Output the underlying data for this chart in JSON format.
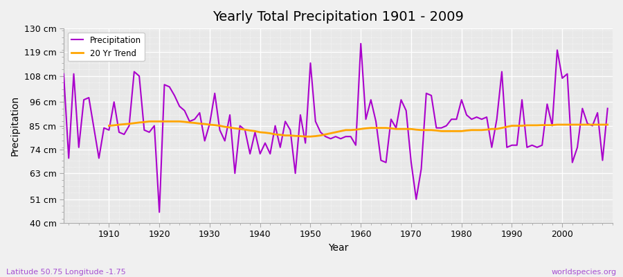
{
  "title": "Yearly Total Precipitation 1901 - 2009",
  "xlabel": "Year",
  "ylabel": "Precipitation",
  "subtitle_left": "Latitude 50.75 Longitude -1.75",
  "subtitle_right": "worldspecies.org",
  "ylim": [
    40,
    130
  ],
  "yticks": [
    40,
    51,
    63,
    74,
    85,
    96,
    108,
    119,
    130
  ],
  "ytick_labels": [
    "40 cm",
    "51 cm",
    "63 cm",
    "74 cm",
    "85 cm",
    "96 cm",
    "108 cm",
    "119 cm",
    "130 cm"
  ],
  "xlim": [
    1901,
    2010
  ],
  "xticks": [
    1910,
    1920,
    1930,
    1940,
    1950,
    1960,
    1970,
    1980,
    1990,
    2000
  ],
  "line_color": "#AA00CC",
  "trend_color": "#FFA500",
  "bg_color": "#F0F0F0",
  "plot_bg": "#E8E8E8",
  "grid_major_color": "#FFFFFF",
  "grid_minor_color": "#FFFFFF",
  "years": [
    1901,
    1902,
    1903,
    1904,
    1905,
    1906,
    1907,
    1908,
    1909,
    1910,
    1911,
    1912,
    1913,
    1914,
    1915,
    1916,
    1917,
    1918,
    1919,
    1920,
    1921,
    1922,
    1923,
    1924,
    1925,
    1926,
    1927,
    1928,
    1929,
    1930,
    1931,
    1932,
    1933,
    1934,
    1935,
    1936,
    1937,
    1938,
    1939,
    1940,
    1941,
    1942,
    1943,
    1944,
    1945,
    1946,
    1947,
    1948,
    1949,
    1950,
    1951,
    1952,
    1953,
    1954,
    1955,
    1956,
    1957,
    1958,
    1959,
    1960,
    1961,
    1962,
    1963,
    1964,
    1965,
    1966,
    1967,
    1968,
    1969,
    1970,
    1971,
    1972,
    1973,
    1974,
    1975,
    1976,
    1977,
    1978,
    1979,
    1980,
    1981,
    1982,
    1983,
    1984,
    1985,
    1986,
    1987,
    1988,
    1989,
    1990,
    1991,
    1992,
    1993,
    1994,
    1995,
    1996,
    1997,
    1998,
    1999,
    2000,
    2001,
    2002,
    2003,
    2004,
    2005,
    2006,
    2007,
    2008,
    2009
  ],
  "precipitation": [
    109,
    70,
    109,
    75,
    97,
    98,
    84,
    70,
    84,
    83,
    96,
    82,
    81,
    85,
    110,
    108,
    83,
    82,
    85,
    45,
    104,
    103,
    99,
    94,
    92,
    87,
    88,
    91,
    78,
    86,
    100,
    83,
    78,
    90,
    63,
    85,
    83,
    72,
    82,
    72,
    77,
    72,
    85,
    75,
    87,
    83,
    63,
    90,
    77,
    114,
    87,
    82,
    80,
    79,
    80,
    79,
    80,
    80,
    76,
    123,
    88,
    97,
    87,
    69,
    68,
    88,
    84,
    97,
    92,
    68,
    51,
    65,
    100,
    99,
    84,
    84,
    85,
    88,
    88,
    97,
    90,
    88,
    89,
    88,
    89,
    75,
    88,
    110,
    75,
    76,
    76,
    97,
    75,
    76,
    75,
    76,
    95,
    85,
    120,
    107,
    109,
    68,
    75,
    93,
    86,
    85,
    91,
    69,
    93
  ],
  "trend": [
    null,
    null,
    null,
    null,
    null,
    null,
    null,
    null,
    null,
    85.0,
    85.2,
    85.5,
    85.7,
    85.9,
    86.2,
    86.5,
    86.7,
    87.0,
    87.0,
    87.0,
    87.0,
    87.0,
    87.0,
    87.0,
    86.8,
    86.5,
    86.3,
    86.0,
    85.8,
    85.5,
    85.3,
    85.0,
    84.5,
    84.2,
    83.8,
    83.5,
    83.2,
    82.8,
    82.5,
    82.0,
    81.8,
    81.5,
    81.0,
    80.8,
    80.5,
    80.5,
    80.3,
    80.2,
    80.0,
    80.0,
    80.2,
    80.5,
    81.0,
    81.5,
    82.0,
    82.5,
    83.0,
    83.0,
    83.2,
    83.5,
    83.8,
    84.0,
    84.0,
    84.0,
    84.0,
    83.8,
    83.5,
    83.5,
    83.5,
    83.5,
    83.2,
    83.0,
    83.0,
    83.0,
    82.8,
    82.5,
    82.5,
    82.5,
    82.5,
    82.5,
    82.8,
    83.0,
    83.0,
    83.0,
    83.2,
    83.5,
    83.5,
    84.0,
    84.5,
    85.0,
    85.0,
    85.0,
    85.2,
    85.2,
    85.2,
    85.3,
    85.3,
    85.3,
    85.5,
    85.5,
    85.5,
    85.5,
    85.5,
    85.5,
    85.5,
    85.5,
    85.5,
    85.5,
    85.5
  ]
}
